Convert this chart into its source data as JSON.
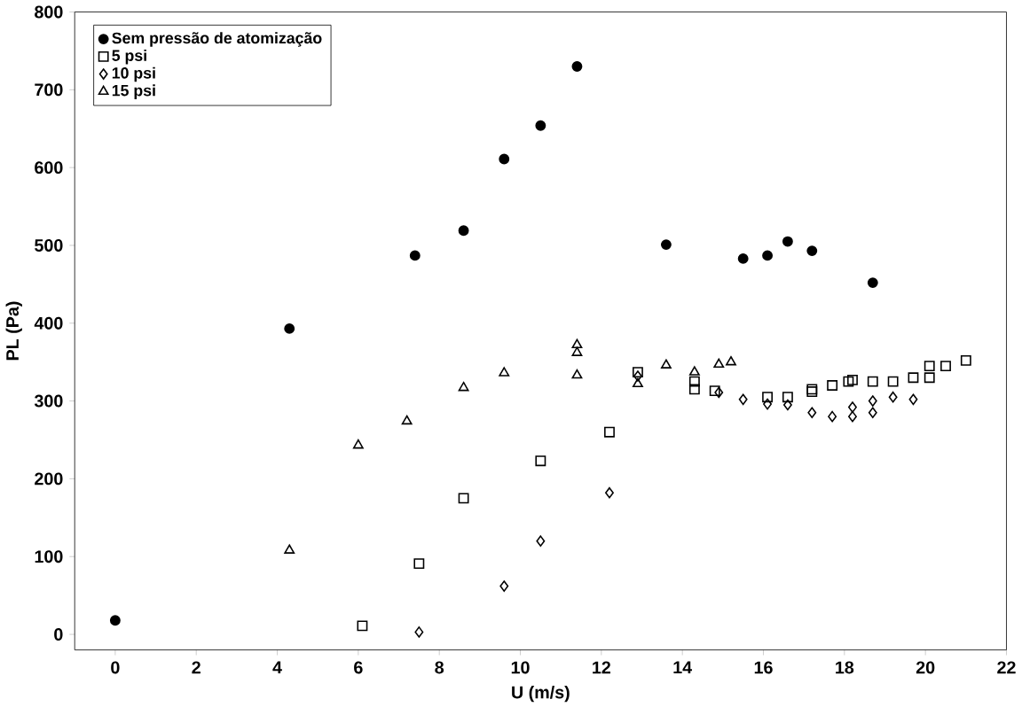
{
  "chart_data": {
    "type": "scatter",
    "xlabel": "U (m/s)",
    "ylabel": "PL (Pa)",
    "xlim": [
      -1,
      22
    ],
    "ylim": [
      -20,
      800
    ],
    "xticks": [
      0,
      2,
      4,
      6,
      8,
      10,
      12,
      14,
      16,
      18,
      20,
      22
    ],
    "yticks": [
      0,
      100,
      200,
      300,
      400,
      500,
      600,
      700,
      800
    ],
    "grid": false,
    "legend": "top left",
    "series": [
      {
        "name": "Sem pressão de atomização",
        "color": "#000000",
        "marker": "circle",
        "x": [
          0,
          4.3,
          7.4,
          8.6,
          9.6,
          10.5,
          11.4,
          13.6,
          15.5,
          16.1,
          16.6,
          17.2,
          18.7
        ],
        "values": [
          18,
          393,
          487,
          519,
          611,
          654,
          730,
          501,
          483,
          487,
          505,
          493,
          452
        ]
      },
      {
        "name": "5 psi",
        "color": "#000000",
        "marker": "square",
        "x": [
          6.1,
          7.5,
          8.6,
          10.5,
          12.2,
          12.9,
          14.3,
          14.3,
          14.8,
          16.1,
          16.6,
          17.2,
          17.2,
          17.7,
          18.1,
          18.2,
          18.7,
          19.2,
          19.7,
          20.1,
          20.1,
          20.5,
          21.0
        ],
        "values": [
          11,
          91,
          175,
          223,
          260,
          337,
          325,
          315,
          313,
          305,
          305,
          312,
          315,
          320,
          325,
          327,
          325,
          325,
          330,
          330,
          345,
          345,
          352
        ]
      },
      {
        "name": "10 psi",
        "color": "#000000",
        "marker": "diamond",
        "x": [
          7.5,
          9.6,
          10.5,
          12.2,
          12.9,
          14.9,
          15.5,
          16.1,
          16.6,
          17.2,
          17.7,
          18.2,
          18.2,
          18.7,
          18.7,
          19.2,
          19.7
        ],
        "values": [
          3,
          62,
          120,
          182,
          332,
          311,
          302,
          296,
          295,
          285,
          280,
          280,
          292,
          285,
          300,
          305,
          302
        ]
      },
      {
        "name": "15 psi",
        "color": "#000000",
        "marker": "triangle",
        "x": [
          4.3,
          6.0,
          7.2,
          8.6,
          9.6,
          11.4,
          11.4,
          11.4,
          12.9,
          13.6,
          14.3,
          14.9,
          15.2
        ],
        "values": [
          108,
          243,
          274,
          317,
          336,
          372,
          362,
          333,
          322,
          346,
          337,
          347,
          350
        ]
      }
    ]
  }
}
